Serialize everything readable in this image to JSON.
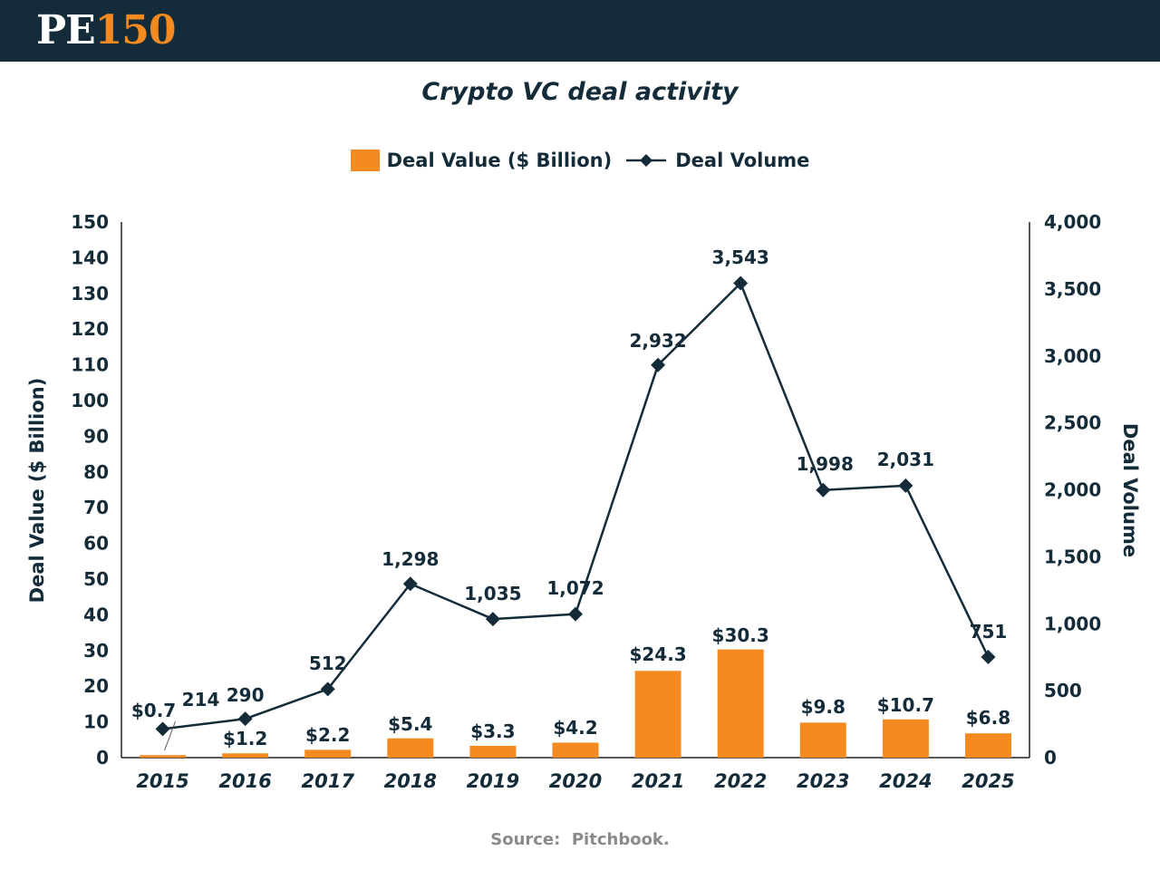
{
  "header": {
    "logo_part1": "PE",
    "logo_part2": "150"
  },
  "source": "Source:  Pitchbook.",
  "colors": {
    "banner": "#142b39",
    "bar": "#f58a20",
    "line": "#142b39",
    "text": "#142b39",
    "source": "#8a8a8a"
  },
  "chart_data": {
    "type": "bar",
    "title": "Crypto VC deal activity",
    "categories": [
      "2015",
      "2016",
      "2017",
      "2018",
      "2019",
      "2020",
      "2021",
      "2022",
      "2023",
      "2024",
      "2025"
    ],
    "series": [
      {
        "name": "Deal Value ($ Billion)",
        "type": "bar",
        "axis": "left",
        "values": [
          0.7,
          1.2,
          2.2,
          5.4,
          3.3,
          4.2,
          24.3,
          30.3,
          9.8,
          10.7,
          6.8
        ],
        "labels": [
          "$0.7",
          "$1.2",
          "$2.2",
          "$5.4",
          "$3.3",
          "$4.2",
          "$24.3",
          "$30.3",
          "$9.8",
          "$10.7",
          "$6.8"
        ]
      },
      {
        "name": "Deal Volume",
        "type": "line",
        "marker": "diamond",
        "axis": "right",
        "values": [
          214,
          290,
          512,
          1298,
          1035,
          1072,
          2932,
          3543,
          1998,
          2031,
          751
        ],
        "labels": [
          "214",
          "290",
          "512",
          "1,298",
          "1,035",
          "1,072",
          "2,932",
          "3,543",
          "1,998",
          "2,031",
          "751"
        ]
      }
    ],
    "ylabel": "Deal Value ($ Billion)",
    "y2label": "Deal Volume",
    "ylim": [
      0,
      150
    ],
    "y2lim": [
      0,
      4000
    ],
    "yticks": [
      "0",
      "10",
      "20",
      "30",
      "40",
      "50",
      "60",
      "70",
      "80",
      "90",
      "100",
      "110",
      "120",
      "130",
      "140",
      "150"
    ],
    "y2ticks": [
      "0",
      "500",
      "1,000",
      "1,500",
      "2,000",
      "2,500",
      "3,000",
      "3,500",
      "4,000"
    ],
    "grid": false,
    "legend_position": "top-center"
  }
}
